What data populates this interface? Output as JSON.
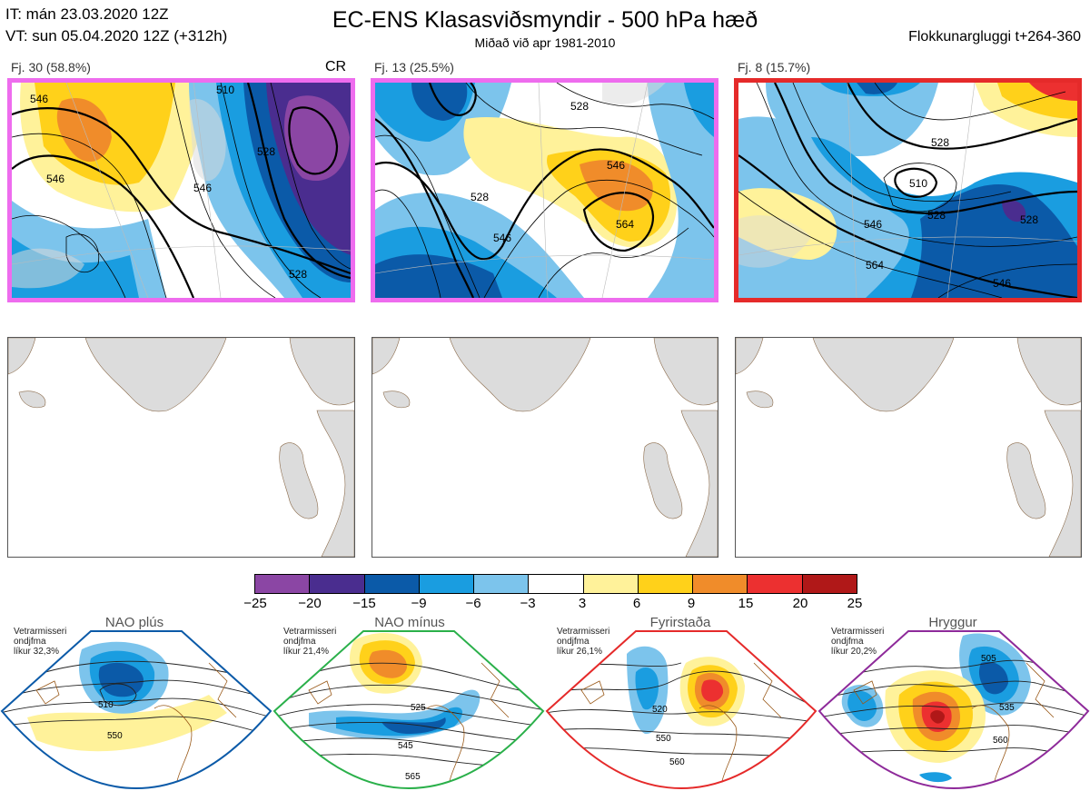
{
  "header": {
    "it_line": "IT: mán 23.03.2020 12Z",
    "vt_line": "VT: sun 05.04.2020 12Z  (+312h)",
    "title": "EC-ENS Klasasviðsmyndir - 500 hPa hæð",
    "subtitle": "Miðað við apr 1981-2010",
    "window": "Flokkunargluggi t+264-360"
  },
  "clusters": [
    {
      "label": "Fj. 30 (58.8%)",
      "badge": "CR",
      "border_color": "#ee6cee",
      "contours": [
        "546",
        "546",
        "546",
        "528",
        "510",
        "528"
      ]
    },
    {
      "label": "Fj. 13 (25.5%)",
      "badge": "",
      "border_color": "#ee6cee",
      "contours": [
        "528",
        "546",
        "546",
        "528",
        "564"
      ]
    },
    {
      "label": "Fj. 8 (15.7%)",
      "badge": "",
      "border_color": "#e52a2a",
      "contours": [
        "510",
        "528",
        "546",
        "564",
        "546",
        "528",
        "528"
      ]
    }
  ],
  "colorbar": {
    "ticks": [
      "−25",
      "−20",
      "−15",
      "−9",
      "−6",
      "−3",
      "3",
      "6",
      "9",
      "15",
      "20",
      "25"
    ],
    "colors": [
      "#8b46a4",
      "#4a2d8f",
      "#0b5aa8",
      "#1a9de0",
      "#7cc4ec",
      "#ffffff",
      "#fff29a",
      "#ffd11a",
      "#f08c2a",
      "#ec3030",
      "#b01818"
    ]
  },
  "regimes": [
    {
      "name": "NAO plús",
      "info": [
        "Vetrarmisseri",
        "ondjfma",
        "líkur 32,3%"
      ],
      "color": "#0b5aa8",
      "contours": [
        "510",
        "550"
      ]
    },
    {
      "name": "NAO mínus",
      "info": [
        "Vetrarmisseri",
        "ondjfma",
        "líkur 21,4%"
      ],
      "color": "#2ab04a",
      "contours": [
        "525",
        "545",
        "565"
      ]
    },
    {
      "name": "Fyrirstaða",
      "info": [
        "Vetrarmisseri",
        "ondjfma",
        "líkur 26,1%"
      ],
      "color": "#e52a2a",
      "contours": [
        "520",
        "550",
        "560"
      ]
    },
    {
      "name": "Hryggur",
      "info": [
        "Vetrarmisseri",
        "ondjfma",
        "líkur 20,2%"
      ],
      "color": "#ee6cee",
      "contours": [
        "505",
        "535",
        "560"
      ]
    }
  ]
}
